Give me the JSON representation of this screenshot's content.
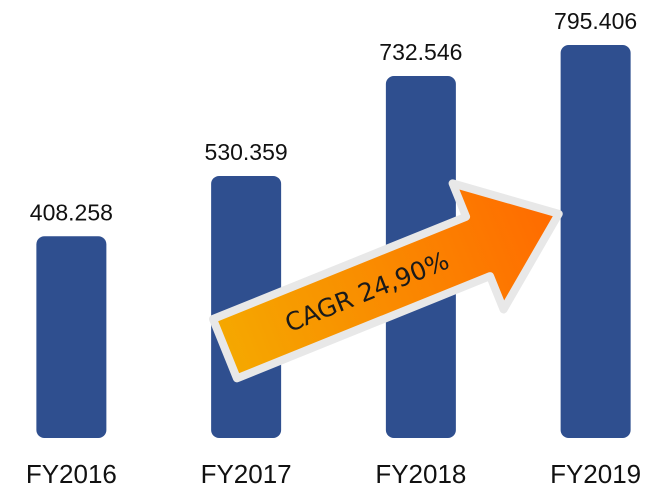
{
  "chart_data": {
    "type": "bar",
    "categories": [
      "FY2016",
      "FY2017",
      "FY2018",
      "FY2019"
    ],
    "values": [
      408.258,
      530.359,
      732.546,
      795.406
    ],
    "color": "#2f4f8f",
    "annotation": "CAGR 24,90%"
  }
}
